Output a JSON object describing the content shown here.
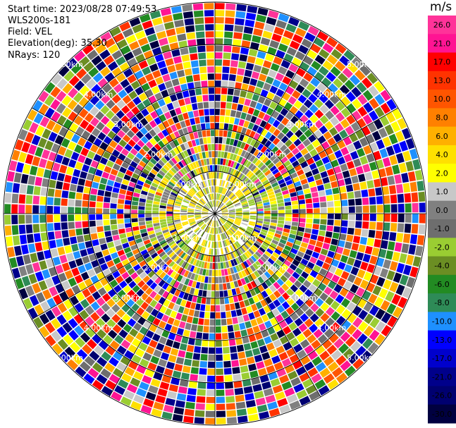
{
  "header": {
    "start_time": "Start time: 2023/08/28 07:49:53",
    "station": "WLS200s-181",
    "field": "Field: VEL",
    "elevation": "Elevation(deg): 35.30",
    "nrays": "NRays: 120"
  },
  "range_rings": {
    "labels": [
      "1.00km",
      "2.00km",
      "3.00km",
      "4.00km",
      "5.00km"
    ]
  },
  "colorbar": {
    "unit": "m/s",
    "ticks": [
      "26.0",
      "21.0",
      "17.0",
      "13.0",
      "10.0",
      "8.0",
      "6.0",
      "4.0",
      "2.0",
      "1.0",
      "0.0",
      "-1.0",
      "-2.0",
      "-4.0",
      "-6.0",
      "-8.0",
      "-10.0",
      "-13.0",
      "-17.0",
      "-21.0",
      "-26.0",
      "-30.0"
    ],
    "colors": [
      "#ff3399",
      "#ff1493",
      "#ff0000",
      "#ff3300",
      "#ff5500",
      "#ff8000",
      "#ffb000",
      "#ffe000",
      "#ffff00",
      "#c8c8c8",
      "#808080",
      "#6e6e6e",
      "#9acd32",
      "#6b8e23",
      "#228b22",
      "#2e8b57",
      "#1e90ff",
      "#0000ff",
      "#0000cd",
      "#00008b",
      "#000070",
      "#000040"
    ]
  }
}
